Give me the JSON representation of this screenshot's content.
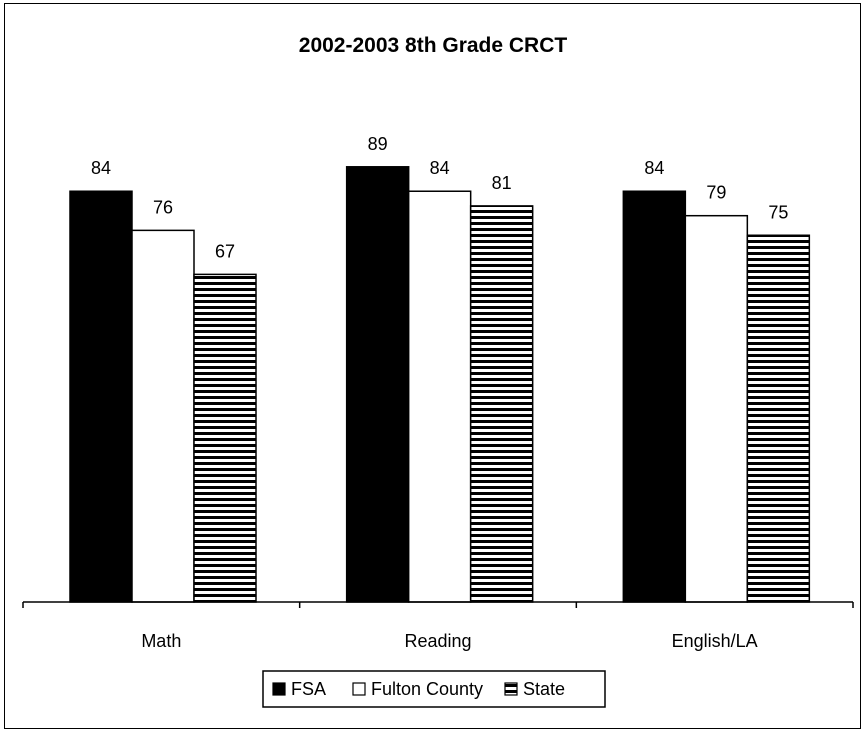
{
  "chart_data": {
    "type": "bar",
    "title": "2002-2003 8th Grade CRCT",
    "xlabel": "",
    "ylabel": "",
    "ylim": [
      0,
      100
    ],
    "grid": false,
    "legend_position": "bottom",
    "categories": [
      "Math",
      "Reading",
      "English/LA"
    ],
    "series": [
      {
        "name": "FSA",
        "values": [
          84,
          89,
          84
        ],
        "fill": "#000000",
        "pattern": "solid"
      },
      {
        "name": "Fulton County",
        "values": [
          76,
          84,
          79
        ],
        "fill": "#ffffff",
        "pattern": "solid"
      },
      {
        "name": "State",
        "values": [
          67,
          81,
          75
        ],
        "fill": "#ffffff",
        "pattern": "horizontal-stripes"
      }
    ]
  }
}
